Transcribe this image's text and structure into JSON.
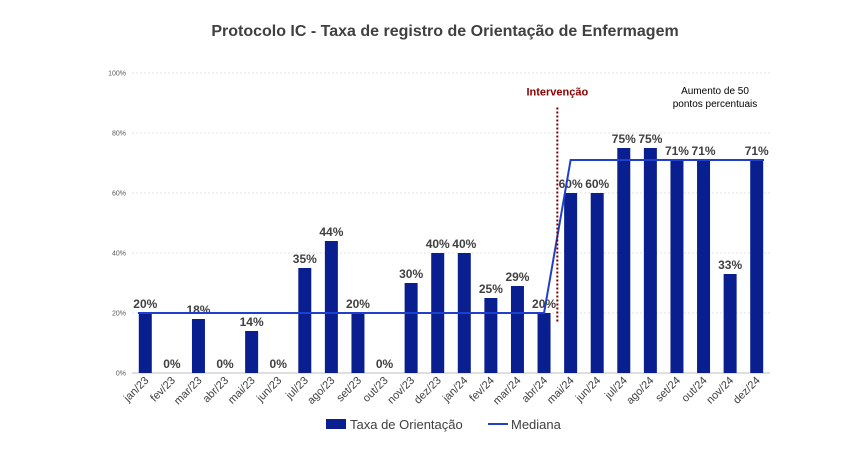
{
  "chart_data": {
    "type": "bar",
    "title": "Protocolo IC - Taxa de registro de Orientação de Enfermagem",
    "xlabel": "",
    "ylabel": "",
    "ylim": [
      0,
      100
    ],
    "yticks": [
      "0%",
      "20%",
      "40%",
      "60%",
      "80%",
      "100%"
    ],
    "ytick_values": [
      0,
      20,
      40,
      60,
      80,
      100
    ],
    "grid": true,
    "categories": [
      "jan/23",
      "fev/23",
      "mar/23",
      "abr/23",
      "mai/23",
      "jun/23",
      "jul/23",
      "ago/23",
      "set/23",
      "out/23",
      "nov/23",
      "dez/23",
      "jan/24",
      "fev/24",
      "mar/24",
      "abr/24",
      "mai/24",
      "jun/24",
      "jul/24",
      "ago/24",
      "set/24",
      "out/24",
      "nov/24",
      "dez/24"
    ],
    "series": [
      {
        "name": "Taxa de Orientação",
        "kind": "bar",
        "color": "#0A1F8F",
        "values": [
          20,
          0,
          18,
          0,
          14,
          0,
          35,
          44,
          20,
          0,
          30,
          40,
          40,
          25,
          29,
          20,
          60,
          60,
          75,
          75,
          71,
          71,
          33,
          71
        ],
        "labels": [
          "20%",
          "0%",
          "18%",
          "0%",
          "14%",
          "0%",
          "35%",
          "44%",
          "20%",
          "0%",
          "30%",
          "40%",
          "40%",
          "25%",
          "29%",
          "20%",
          "60%",
          "60%",
          "75%",
          "75%",
          "71%",
          "71%",
          "33%",
          "71%"
        ]
      },
      {
        "name": "Mediana",
        "kind": "line",
        "color": "#1F3FCC",
        "values": [
          20,
          20,
          20,
          20,
          20,
          20,
          20,
          20,
          20,
          20,
          20,
          20,
          20,
          20,
          20,
          20,
          71,
          71,
          71,
          71,
          71,
          71,
          71,
          71
        ]
      }
    ],
    "intervention_label": "Intervenção",
    "intervention_after_category": "abr/24",
    "annotation_text": "Aumento de 50 pontos percentuais",
    "legend_position": "bottom"
  }
}
